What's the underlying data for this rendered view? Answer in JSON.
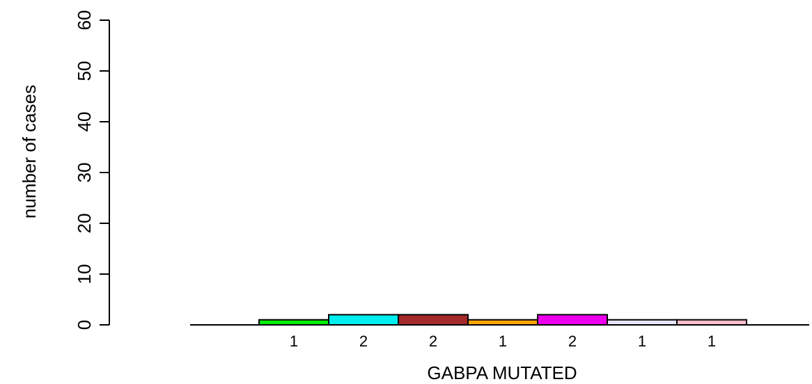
{
  "chart_data": {
    "type": "bar",
    "title": "",
    "xlabel": "GABPA MUTATED",
    "ylabel": "number of cases",
    "ylim": [
      0,
      60
    ],
    "yticks": [
      "0",
      "10",
      "20",
      "30",
      "40",
      "50",
      "60"
    ],
    "categories": [
      "",
      "",
      "",
      "",
      "",
      "",
      ""
    ],
    "values": [
      1,
      2,
      2,
      1,
      2,
      1,
      1
    ],
    "value_labels": [
      "1",
      "2",
      "2",
      "1",
      "2",
      "1",
      "1"
    ],
    "colors": [
      "#00ee00",
      "#00eeee",
      "#a52a2a",
      "#ffa500",
      "#ee00ee",
      "#e6e6fa",
      "#ffc0cb"
    ],
    "grid": false,
    "legend": "none"
  }
}
